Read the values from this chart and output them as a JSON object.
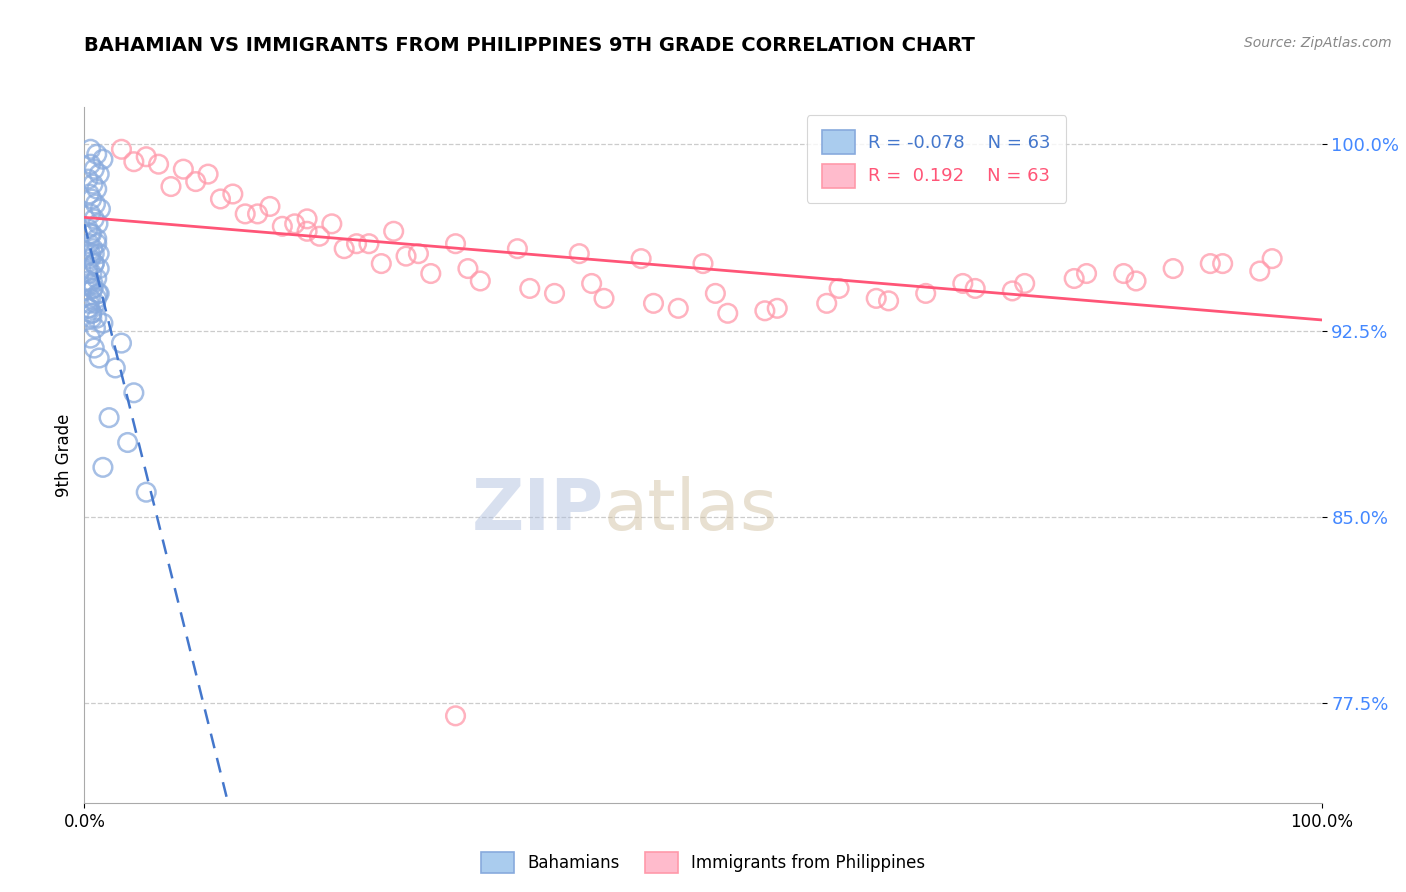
{
  "title": "BAHAMIAN VS IMMIGRANTS FROM PHILIPPINES 9TH GRADE CORRELATION CHART",
  "source_text": "Source: ZipAtlas.com",
  "ylabel": "9th Grade",
  "yticks": [
    0.775,
    0.85,
    0.925,
    1.0
  ],
  "ytick_labels": [
    "77.5%",
    "85.0%",
    "92.5%",
    "100.0%"
  ],
  "xlim": [
    0.0,
    1.0
  ],
  "ylim": [
    0.735,
    1.015
  ],
  "legend_r_blue": "-0.078",
  "legend_r_pink": " 0.192",
  "legend_n": "63",
  "blue_color": "#88AADD",
  "pink_color": "#FF99AA",
  "blue_line_color": "#4477CC",
  "pink_line_color": "#FF5577",
  "watermark_zip": "ZIP",
  "watermark_atlas": "atlas",
  "blue_scatter_x": [
    0.005,
    0.01,
    0.015,
    0.005,
    0.008,
    0.012,
    0.003,
    0.007,
    0.01,
    0.004,
    0.006,
    0.009,
    0.013,
    0.005,
    0.008,
    0.011,
    0.003,
    0.006,
    0.01,
    0.004,
    0.007,
    0.012,
    0.005,
    0.008,
    0.003,
    0.006,
    0.01,
    0.004,
    0.007,
    0.012,
    0.005,
    0.009,
    0.003,
    0.006,
    0.01,
    0.015,
    0.005,
    0.008,
    0.003,
    0.007,
    0.011,
    0.004,
    0.006,
    0.01,
    0.005,
    0.008,
    0.012,
    0.003,
    0.007,
    0.01,
    0.004,
    0.006,
    0.009,
    0.005,
    0.008,
    0.012,
    0.03,
    0.025,
    0.04,
    0.02,
    0.035,
    0.015,
    0.05
  ],
  "blue_scatter_y": [
    0.998,
    0.996,
    0.994,
    0.992,
    0.99,
    0.988,
    0.986,
    0.984,
    0.982,
    0.98,
    0.978,
    0.976,
    0.974,
    0.972,
    0.97,
    0.968,
    0.966,
    0.964,
    0.962,
    0.96,
    0.958,
    0.956,
    0.954,
    0.952,
    0.95,
    0.948,
    0.946,
    0.944,
    0.942,
    0.94,
    0.938,
    0.936,
    0.934,
    0.932,
    0.93,
    0.928,
    0.956,
    0.952,
    0.948,
    0.944,
    0.94,
    0.936,
    0.932,
    0.96,
    0.964,
    0.956,
    0.95,
    0.945,
    0.942,
    0.938,
    0.934,
    0.93,
    0.926,
    0.922,
    0.918,
    0.914,
    0.92,
    0.91,
    0.9,
    0.89,
    0.88,
    0.87,
    0.86
  ],
  "pink_scatter_x": [
    0.03,
    0.06,
    0.09,
    0.12,
    0.15,
    0.18,
    0.1,
    0.05,
    0.08,
    0.04,
    0.07,
    0.11,
    0.14,
    0.2,
    0.25,
    0.3,
    0.35,
    0.4,
    0.45,
    0.5,
    0.18,
    0.22,
    0.26,
    0.16,
    0.19,
    0.21,
    0.24,
    0.28,
    0.32,
    0.36,
    0.38,
    0.42,
    0.46,
    0.48,
    0.52,
    0.56,
    0.6,
    0.64,
    0.68,
    0.72,
    0.76,
    0.8,
    0.84,
    0.88,
    0.92,
    0.96,
    0.55,
    0.65,
    0.75,
    0.85,
    0.95,
    0.13,
    0.17,
    0.23,
    0.27,
    0.31,
    0.41,
    0.51,
    0.61,
    0.71,
    0.81,
    0.91,
    0.3
  ],
  "pink_scatter_y": [
    0.998,
    0.992,
    0.985,
    0.98,
    0.975,
    0.97,
    0.988,
    0.995,
    0.99,
    0.993,
    0.983,
    0.978,
    0.972,
    0.968,
    0.965,
    0.96,
    0.958,
    0.956,
    0.954,
    0.952,
    0.965,
    0.96,
    0.955,
    0.967,
    0.963,
    0.958,
    0.952,
    0.948,
    0.945,
    0.942,
    0.94,
    0.938,
    0.936,
    0.934,
    0.932,
    0.934,
    0.936,
    0.938,
    0.94,
    0.942,
    0.944,
    0.946,
    0.948,
    0.95,
    0.952,
    0.954,
    0.933,
    0.937,
    0.941,
    0.945,
    0.949,
    0.972,
    0.968,
    0.96,
    0.956,
    0.95,
    0.944,
    0.94,
    0.942,
    0.944,
    0.948,
    0.952,
    0.77
  ]
}
